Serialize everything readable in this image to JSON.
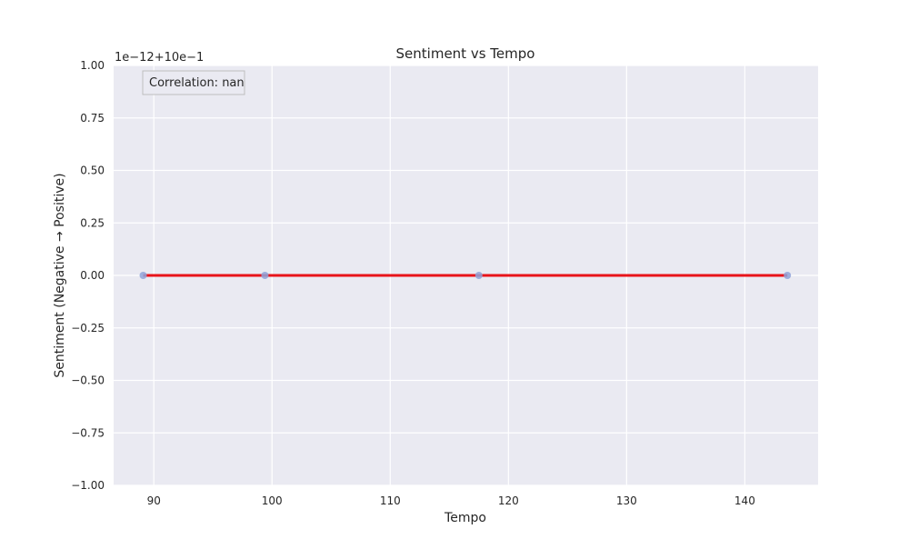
{
  "chart_data": {
    "type": "scatter",
    "title": "Sentiment vs Tempo",
    "xlabel": "Tempo",
    "ylabel": "Sentiment (Negative → Positive)",
    "xlim": [
      86.6,
      146.2
    ],
    "ylim": [
      -1.0,
      1.0
    ],
    "x_ticks": [
      90,
      100,
      110,
      120,
      130,
      140
    ],
    "y_ticks": [
      -1.0,
      -0.75,
      -0.5,
      -0.25,
      0.0,
      0.25,
      0.5,
      0.75,
      1.0
    ],
    "y_tick_labels": [
      "−1.00",
      "−0.75",
      "−0.50",
      "−0.25",
      "0.00",
      "0.25",
      "0.50",
      "0.75",
      "1.00"
    ],
    "y_offset_text": "1e−12+10e−1",
    "grid": true,
    "points": [
      {
        "x": 89.1,
        "y": 0.0
      },
      {
        "x": 99.4,
        "y": 0.0
      },
      {
        "x": 117.5,
        "y": 0.0
      },
      {
        "x": 143.6,
        "y": 0.0
      }
    ],
    "trend_line": {
      "x": [
        89.1,
        143.6
      ],
      "y": [
        0.0,
        0.0
      ]
    },
    "annotation": "Correlation: nan",
    "colors": {
      "background": "#eaeaf2",
      "grid": "#ffffff",
      "points": "#8fa3d9",
      "trend_line": "#e8141b"
    }
  }
}
